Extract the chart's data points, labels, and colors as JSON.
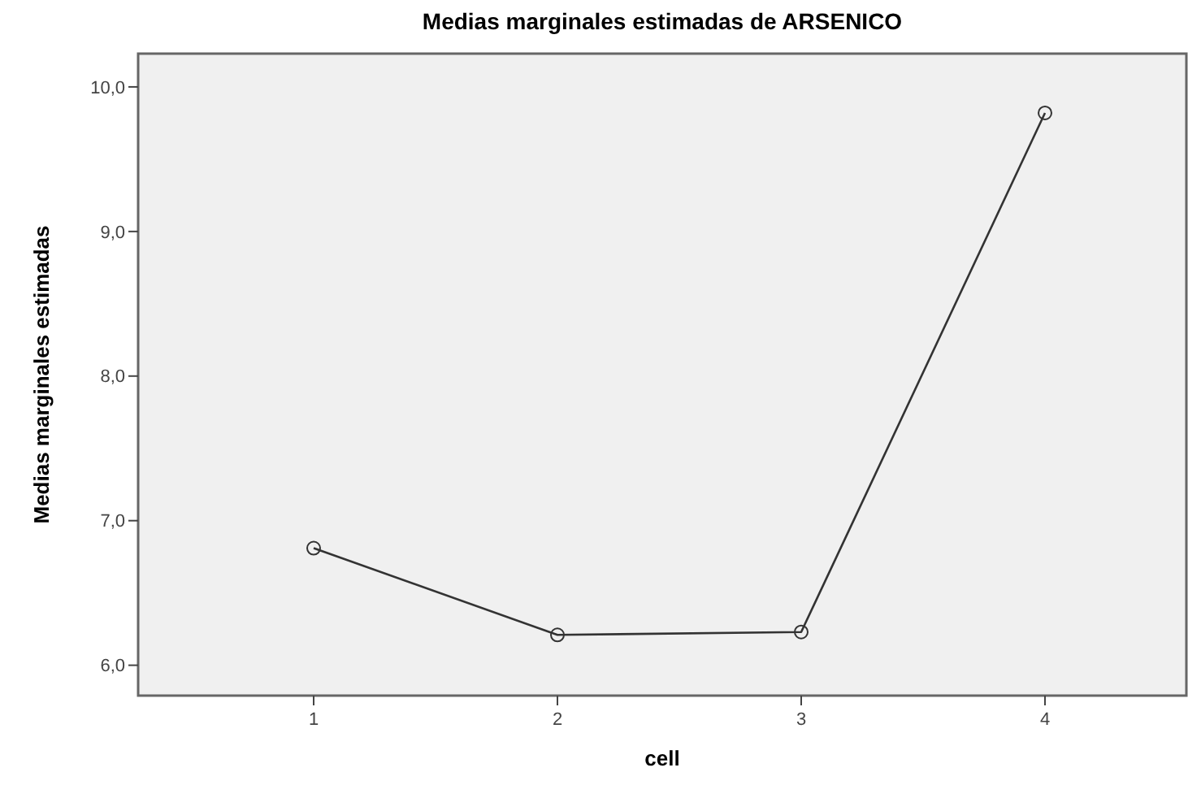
{
  "chart_data": {
    "type": "line",
    "title": "Medias marginales estimadas de ARSENICO",
    "xlabel": "cell",
    "ylabel": "Medias marginales estimadas",
    "x": [
      1,
      2,
      3,
      4
    ],
    "xlim": [
      0.28,
      4.58
    ],
    "xticks": [
      1,
      2,
      3,
      4
    ],
    "ylim": [
      5.79,
      10.23
    ],
    "yticks": [
      {
        "value": 6,
        "label": "6,0"
      },
      {
        "value": 7,
        "label": "7,0"
      },
      {
        "value": 8,
        "label": "8,0"
      },
      {
        "value": 9,
        "label": "9,0"
      },
      {
        "value": 10,
        "label": "10,0"
      }
    ],
    "series": [
      {
        "color": "#333333",
        "values": [
          6.81,
          6.21,
          6.23,
          9.82
        ]
      }
    ],
    "marker": "circle",
    "line_style": "solid",
    "grid": false
  }
}
